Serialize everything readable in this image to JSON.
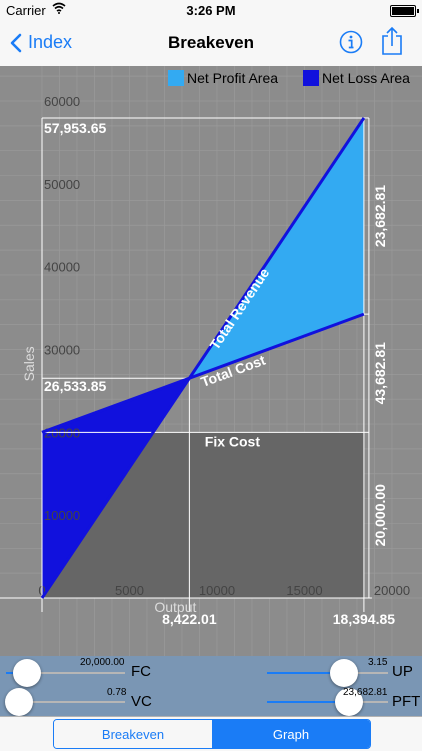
{
  "status": {
    "carrier": "Carrier",
    "time": "3:26 PM"
  },
  "nav": {
    "back_label": "Index",
    "title": "Breakeven"
  },
  "legend": {
    "profit_label": "Net Profit Area",
    "loss_label": "Net Loss Area",
    "profit_color": "#33aaf2",
    "loss_color": "#1111dd"
  },
  "chart_data": {
    "type": "area",
    "xlabel": "Output",
    "ylabel": "Sales",
    "x_ticks": [
      "0",
      "5000",
      "10000",
      "15000",
      "20000"
    ],
    "y_ticks": [
      "10000",
      "20000",
      "30000",
      "40000",
      "50000",
      "60000"
    ],
    "xlim": [
      0,
      20000
    ],
    "ylim": [
      0,
      60000
    ],
    "grid": true,
    "series": [
      {
        "name": "Total Revenue",
        "x": [
          0,
          18394.85
        ],
        "y": [
          0,
          57953.65
        ]
      },
      {
        "name": "Total Cost",
        "x": [
          0,
          18394.85
        ],
        "y": [
          20000,
          34270.84
        ]
      },
      {
        "name": "Fix Cost",
        "x": [
          0,
          18394.85
        ],
        "y": [
          20000,
          20000
        ]
      }
    ],
    "breakeven": {
      "x": 8422.01,
      "y": 26533.85
    },
    "max_output": 18394.85,
    "max_revenue": 57953.65,
    "fixed_cost": 20000,
    "labels": {
      "max_revenue": "57,953.65",
      "breakeven_sales": "26,533.85",
      "breakeven_output": "8,422.01",
      "max_output": "18,394.85",
      "profit": "23,682.81",
      "variable_cost": "43,682.81",
      "fixed_cost": "20,000.00",
      "total_revenue": "Total Revenue",
      "total_cost": "Total Cost",
      "fix_cost": "Fix Cost"
    },
    "colors": {
      "background": "#8c8c8c",
      "fixed_area": "#666666",
      "line": "#1111dd"
    }
  },
  "controls": {
    "fc": {
      "label": "FC",
      "value": "20,000.00",
      "position": 0.18
    },
    "vc": {
      "label": "VC",
      "value": "0.78",
      "position": 0.11
    },
    "up": {
      "label": "UP",
      "value": "3.15",
      "position": 0.64
    },
    "pft": {
      "label": "PFT",
      "value": "23,682.81",
      "position": 0.68
    }
  },
  "segments": {
    "left": "Breakeven",
    "right": "Graph",
    "selected": "Graph"
  }
}
